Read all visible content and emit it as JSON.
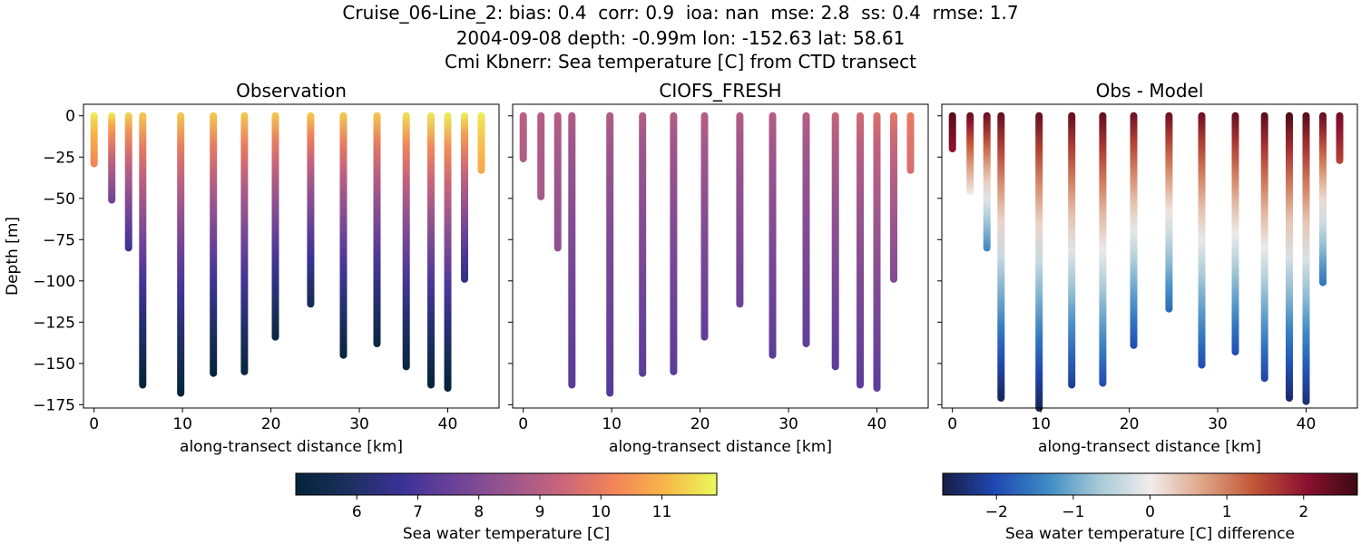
{
  "title": {
    "line1": "Cruise_06-Line_2: bias: 0.4  corr: 0.9  ioa: nan  mse: 2.8  ss: 0.4  rmse: 1.7",
    "line2": "2004-09-08 depth: -0.99m lon: -152.63 lat: 58.61",
    "line3": "Cmi Kbnerr: Sea temperature [C] from CTD transect"
  },
  "chart_data": [
    {
      "type": "scatter",
      "title": "Observation",
      "xlabel": "along-transect distance [km]",
      "ylabel": "Depth [m]",
      "xlim": [
        -1.2,
        45.8
      ],
      "ylim": [
        -177,
        7
      ],
      "xticks": [
        0,
        10,
        20,
        30,
        40
      ],
      "yticks": [
        0,
        -25,
        -50,
        -75,
        -100,
        -125,
        -150,
        -175
      ],
      "colormap": "thermal",
      "clim": [
        5.0,
        11.9
      ],
      "profiles": [
        {
          "x": 0.0,
          "max_depth": -29,
          "t_surface": 11.8,
          "t_bottom": 10.2
        },
        {
          "x": 2.0,
          "max_depth": -51,
          "t_surface": 11.8,
          "t_bottom": 7.6
        },
        {
          "x": 3.9,
          "max_depth": -80,
          "t_surface": 11.5,
          "t_bottom": 6.7
        },
        {
          "x": 5.5,
          "max_depth": -163,
          "t_surface": 11.3,
          "t_bottom": 5.0
        },
        {
          "x": 9.8,
          "max_depth": -168,
          "t_surface": 11.3,
          "t_bottom": 5.0
        },
        {
          "x": 13.5,
          "max_depth": -156,
          "t_surface": 11.3,
          "t_bottom": 5.0
        },
        {
          "x": 17.0,
          "max_depth": -155,
          "t_surface": 11.3,
          "t_bottom": 5.1
        },
        {
          "x": 20.5,
          "max_depth": -134,
          "t_surface": 11.3,
          "t_bottom": 5.2
        },
        {
          "x": 24.5,
          "max_depth": -114,
          "t_surface": 11.3,
          "t_bottom": 5.6
        },
        {
          "x": 28.2,
          "max_depth": -145,
          "t_surface": 11.3,
          "t_bottom": 5.1
        },
        {
          "x": 32.0,
          "max_depth": -138,
          "t_surface": 11.3,
          "t_bottom": 5.2
        },
        {
          "x": 35.3,
          "max_depth": -152,
          "t_surface": 11.6,
          "t_bottom": 5.1
        },
        {
          "x": 38.1,
          "max_depth": -163,
          "t_surface": 11.7,
          "t_bottom": 5.0
        },
        {
          "x": 40.0,
          "max_depth": -165,
          "t_surface": 11.8,
          "t_bottom": 5.0
        },
        {
          "x": 41.9,
          "max_depth": -99,
          "t_surface": 11.8,
          "t_bottom": 6.4
        },
        {
          "x": 43.8,
          "max_depth": -33,
          "t_surface": 11.8,
          "t_bottom": 10.8
        }
      ]
    },
    {
      "type": "scatter",
      "title": "CIOFS_FRESH",
      "xlabel": "along-transect distance [km]",
      "ylabel": "",
      "xlim": [
        -1.2,
        45.8
      ],
      "ylim": [
        -177,
        7
      ],
      "xticks": [
        0,
        10,
        20,
        30,
        40
      ],
      "colormap": "thermal",
      "clim": [
        5.0,
        11.9
      ],
      "profiles": [
        {
          "x": 0.0,
          "max_depth": -26,
          "t_surface": 9.1,
          "t_bottom": 8.9
        },
        {
          "x": 2.0,
          "max_depth": -49,
          "t_surface": 9.0,
          "t_bottom": 8.7
        },
        {
          "x": 3.9,
          "max_depth": -80,
          "t_surface": 9.0,
          "t_bottom": 8.2
        },
        {
          "x": 5.5,
          "max_depth": -163,
          "t_surface": 8.9,
          "t_bottom": 7.2
        },
        {
          "x": 9.8,
          "max_depth": -168,
          "t_surface": 8.9,
          "t_bottom": 7.2
        },
        {
          "x": 13.5,
          "max_depth": -156,
          "t_surface": 8.9,
          "t_bottom": 7.3
        },
        {
          "x": 17.0,
          "max_depth": -155,
          "t_surface": 8.9,
          "t_bottom": 7.3
        },
        {
          "x": 20.5,
          "max_depth": -134,
          "t_surface": 9.0,
          "t_bottom": 7.4
        },
        {
          "x": 24.5,
          "max_depth": -114,
          "t_surface": 9.0,
          "t_bottom": 7.6
        },
        {
          "x": 28.2,
          "max_depth": -145,
          "t_surface": 9.0,
          "t_bottom": 7.3
        },
        {
          "x": 32.0,
          "max_depth": -138,
          "t_surface": 9.0,
          "t_bottom": 7.4
        },
        {
          "x": 35.3,
          "max_depth": -152,
          "t_surface": 9.3,
          "t_bottom": 7.3
        },
        {
          "x": 38.1,
          "max_depth": -163,
          "t_surface": 9.5,
          "t_bottom": 7.3
        },
        {
          "x": 40.0,
          "max_depth": -165,
          "t_surface": 9.7,
          "t_bottom": 7.3
        },
        {
          "x": 41.9,
          "max_depth": -99,
          "t_surface": 9.9,
          "t_bottom": 8.0
        },
        {
          "x": 43.8,
          "max_depth": -33,
          "t_surface": 10.0,
          "t_bottom": 9.6
        }
      ]
    },
    {
      "type": "scatter",
      "title": "Obs - Model",
      "xlabel": "along-transect distance [km]",
      "ylabel": "",
      "xlim": [
        -1.2,
        45.8
      ],
      "ylim": [
        -177,
        7
      ],
      "xticks": [
        0,
        10,
        20,
        30,
        40
      ],
      "colormap": "balance",
      "clim": [
        -2.7,
        2.7
      ],
      "profiles": [
        {
          "x": 0.0,
          "max_depth": -20,
          "d_surface": 2.5,
          "d_bottom": 2.0
        },
        {
          "x": 2.0,
          "max_depth": -46,
          "d_surface": 2.4,
          "d_bottom": 0.0
        },
        {
          "x": 3.9,
          "max_depth": -80,
          "d_surface": 2.4,
          "d_bottom": -1.4
        },
        {
          "x": 5.5,
          "max_depth": -171,
          "d_surface": 2.4,
          "d_bottom": -2.6
        },
        {
          "x": 9.8,
          "max_depth": -177,
          "d_surface": 2.4,
          "d_bottom": -2.6
        },
        {
          "x": 13.5,
          "max_depth": -163,
          "d_surface": 2.4,
          "d_bottom": -2.2
        },
        {
          "x": 17.0,
          "max_depth": -162,
          "d_surface": 2.4,
          "d_bottom": -2.0
        },
        {
          "x": 20.5,
          "max_depth": -139,
          "d_surface": 2.3,
          "d_bottom": -2.0
        },
        {
          "x": 24.5,
          "max_depth": -117,
          "d_surface": 2.3,
          "d_bottom": -1.7
        },
        {
          "x": 28.2,
          "max_depth": -151,
          "d_surface": 2.3,
          "d_bottom": -2.0
        },
        {
          "x": 32.0,
          "max_depth": -143,
          "d_surface": 2.4,
          "d_bottom": -2.0
        },
        {
          "x": 35.3,
          "max_depth": -159,
          "d_surface": 2.5,
          "d_bottom": -2.1
        },
        {
          "x": 38.1,
          "max_depth": -171,
          "d_surface": 2.6,
          "d_bottom": -2.5
        },
        {
          "x": 40.0,
          "max_depth": -173,
          "d_surface": 2.5,
          "d_bottom": -2.4
        },
        {
          "x": 41.9,
          "max_depth": -101,
          "d_surface": 2.4,
          "d_bottom": -1.6
        },
        {
          "x": 43.8,
          "max_depth": -27,
          "d_surface": 2.3,
          "d_bottom": 1.5
        }
      ]
    }
  ],
  "colorbars": [
    {
      "label": "Sea water temperature [C]",
      "min": 5.0,
      "max": 11.9,
      "ticks": [
        6,
        7,
        8,
        9,
        10,
        11
      ],
      "colormap": "thermal"
    },
    {
      "label": "Sea water temperature [C] difference",
      "min": -2.7,
      "max": 2.7,
      "ticks": [
        -2,
        -1,
        0,
        1,
        2
      ],
      "tick_labels": [
        "−2",
        "−1",
        "0",
        "1",
        "2"
      ],
      "colormap": "balance"
    }
  ],
  "colormaps": {
    "thermal": [
      "#04233a",
      "#1c2f5e",
      "#3a3296",
      "#6b4298",
      "#98558d",
      "#c7647c",
      "#f1825a",
      "#f9b549",
      "#e8fa5b"
    ],
    "balance": [
      "#181c43",
      "#1f48b2",
      "#3c89c4",
      "#a5c9d6",
      "#f1ecec",
      "#dea688",
      "#c25636",
      "#8c1130",
      "#3c0912"
    ]
  }
}
